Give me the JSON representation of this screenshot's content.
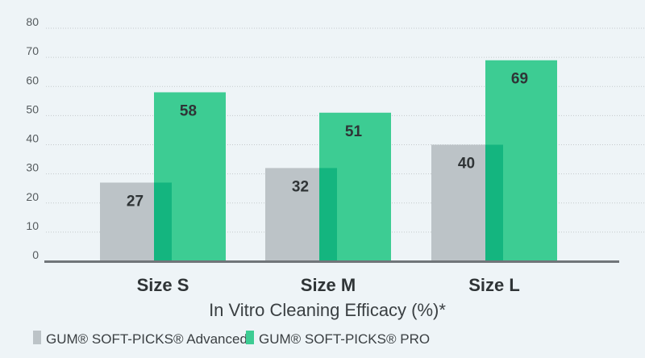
{
  "chart_data": {
    "type": "bar",
    "categories": [
      "Size S",
      "Size M",
      "Size L"
    ],
    "series": [
      {
        "name": "GUM® SOFT-PICKS® Advanced",
        "values": [
          27,
          32,
          40
        ],
        "color": "#bcc3c7"
      },
      {
        "name": "GUM® SOFT-PICKS® PRO",
        "values": [
          58,
          51,
          69
        ],
        "color": "#3dcc93"
      }
    ],
    "overlap_color": "#14b57f",
    "xlabel": "In Vitro Cleaning Efficacy (%)*",
    "ylabel": "",
    "ylim": [
      0,
      80
    ],
    "yticks": [
      0,
      10,
      20,
      30,
      40,
      50,
      60,
      70,
      80
    ],
    "grid": true,
    "legend_position": "bottom"
  }
}
